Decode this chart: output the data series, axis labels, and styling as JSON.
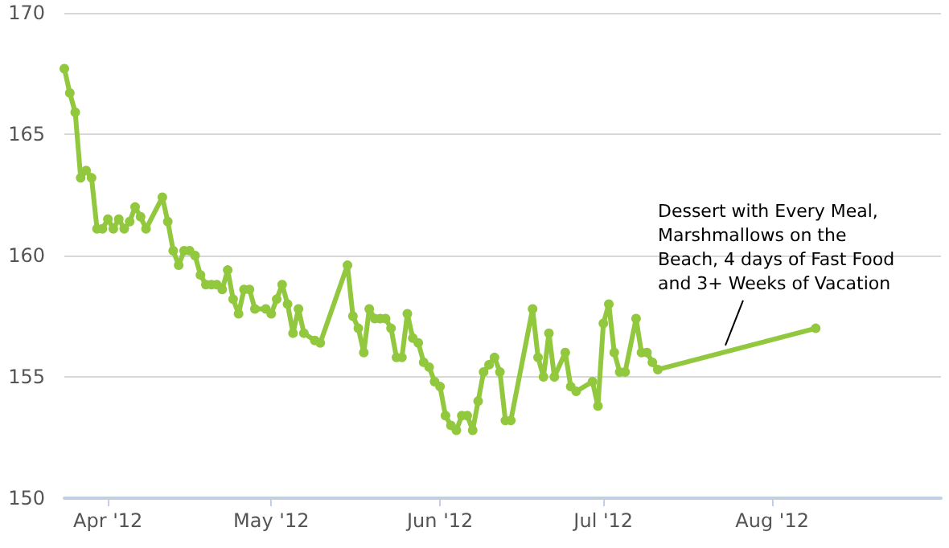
{
  "chart_data": {
    "type": "line",
    "x": [
      "2012-03-24",
      "2012-03-25",
      "2012-03-26",
      "2012-03-27",
      "2012-03-28",
      "2012-03-29",
      "2012-03-30",
      "2012-03-31",
      "2012-04-01",
      "2012-04-02",
      "2012-04-03",
      "2012-04-04",
      "2012-04-05",
      "2012-04-06",
      "2012-04-07",
      "2012-04-08",
      "2012-04-11",
      "2012-04-12",
      "2012-04-13",
      "2012-04-14",
      "2012-04-15",
      "2012-04-16",
      "2012-04-17",
      "2012-04-18",
      "2012-04-19",
      "2012-04-20",
      "2012-04-21",
      "2012-04-22",
      "2012-04-23",
      "2012-04-24",
      "2012-04-25",
      "2012-04-26",
      "2012-04-27",
      "2012-04-28",
      "2012-04-30",
      "2012-05-01",
      "2012-05-02",
      "2012-05-03",
      "2012-05-04",
      "2012-05-05",
      "2012-05-06",
      "2012-05-07",
      "2012-05-09",
      "2012-05-10",
      "2012-05-15",
      "2012-05-16",
      "2012-05-17",
      "2012-05-18",
      "2012-05-19",
      "2012-05-20",
      "2012-05-21",
      "2012-05-22",
      "2012-05-23",
      "2012-05-24",
      "2012-05-25",
      "2012-05-26",
      "2012-05-27",
      "2012-05-28",
      "2012-05-29",
      "2012-05-30",
      "2012-05-31",
      "2012-06-01",
      "2012-06-02",
      "2012-06-03",
      "2012-06-04",
      "2012-06-05",
      "2012-06-06",
      "2012-06-07",
      "2012-06-08",
      "2012-06-09",
      "2012-06-10",
      "2012-06-11",
      "2012-06-12",
      "2012-06-13",
      "2012-06-14",
      "2012-06-18",
      "2012-06-19",
      "2012-06-20",
      "2012-06-21",
      "2012-06-22",
      "2012-06-24",
      "2012-06-25",
      "2012-06-26",
      "2012-06-29",
      "2012-06-30",
      "2012-07-01",
      "2012-07-02",
      "2012-07-03",
      "2012-07-04",
      "2012-07-05",
      "2012-07-07",
      "2012-07-08",
      "2012-07-09",
      "2012-07-10",
      "2012-07-11",
      "2012-08-09"
    ],
    "series": [
      {
        "color": "#92c83e",
        "values": [
          167.7,
          166.7,
          165.9,
          163.2,
          163.5,
          163.2,
          161.1,
          161.1,
          161.5,
          161.1,
          161.5,
          161.1,
          161.4,
          162.0,
          161.6,
          161.1,
          162.4,
          161.4,
          160.2,
          159.6,
          160.2,
          160.2,
          160.0,
          159.2,
          158.8,
          158.8,
          158.8,
          158.6,
          159.4,
          158.2,
          157.6,
          158.6,
          158.6,
          157.8,
          157.8,
          157.6,
          158.2,
          158.8,
          158.0,
          156.8,
          157.8,
          156.8,
          156.5,
          156.4,
          159.6,
          157.5,
          157.0,
          156.0,
          157.8,
          157.4,
          157.4,
          157.4,
          157.0,
          155.8,
          155.8,
          157.6,
          156.6,
          156.4,
          155.6,
          155.4,
          154.8,
          154.6,
          153.4,
          153.0,
          152.8,
          153.4,
          153.4,
          152.8,
          154.0,
          155.2,
          155.5,
          155.8,
          155.2,
          153.2,
          153.2,
          157.8,
          155.8,
          155.0,
          156.8,
          155.0,
          156.0,
          154.6,
          154.4,
          154.8,
          153.8,
          157.2,
          158.0,
          156.0,
          155.2,
          155.2,
          157.4,
          156.0,
          156.0,
          155.6,
          155.3,
          157.0
        ]
      }
    ],
    "xlim": [
      "2012-03-24",
      "2012-09-01"
    ],
    "xticks": [
      {
        "value": "2012-04-01",
        "label": "Apr '12"
      },
      {
        "value": "2012-05-01",
        "label": "May '12"
      },
      {
        "value": "2012-06-01",
        "label": "Jun '12"
      },
      {
        "value": "2012-07-01",
        "label": "Jul '12"
      },
      {
        "value": "2012-08-01",
        "label": "Aug '12"
      }
    ],
    "ylim": [
      150,
      170
    ],
    "yticks": [
      150,
      155,
      160,
      165,
      170
    ],
    "grid": "y",
    "marker": "circle",
    "line_style": "solid",
    "annotations": [
      {
        "text": "Dessert with Every Meal,\nMarshmallows on the\nBeach, 4 days of Fast Food\nand 3+ Weeks of Vacation",
        "x": "2012-07-24",
        "y": 156.1
      }
    ]
  }
}
